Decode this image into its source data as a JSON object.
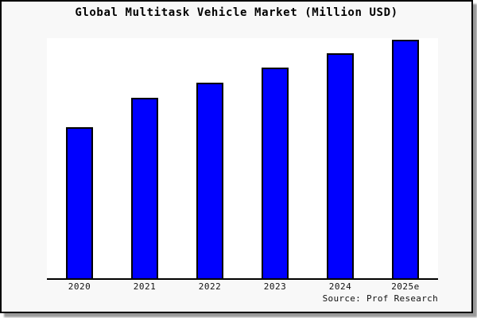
{
  "chart_data": {
    "type": "bar",
    "title": "Global Multitask Vehicle Market (Million USD)",
    "categories": [
      "2020",
      "2021",
      "2022",
      "2023",
      "2024",
      "2025e"
    ],
    "values": [
      0.629,
      0.751,
      0.814,
      0.877,
      0.937,
      0.993
    ],
    "note": "y-axis has no tick labels or gridlines in the source image; values are estimated fractions of the plot height",
    "ylim": [
      0,
      1
    ],
    "xlabel": "",
    "ylabel": "",
    "grid": false,
    "legend": false,
    "bar_color": "#0000ff",
    "bar_border_color": "#000000",
    "axis_color": "#000000",
    "plot_background": "#ffffff",
    "canvas_background": "#f8f8f8",
    "source_note": "Source: Prof Research"
  }
}
